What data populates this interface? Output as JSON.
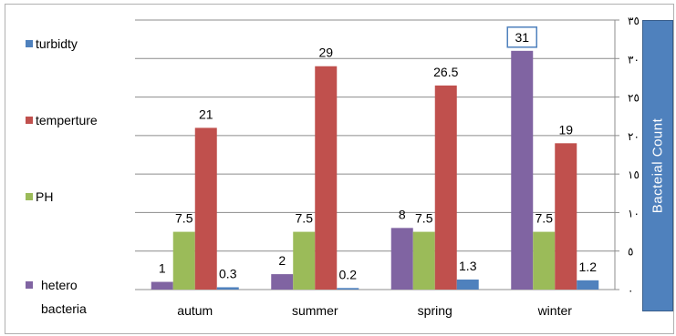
{
  "chart_data": {
    "type": "bar",
    "categories": [
      "autum",
      "summer",
      "spring",
      "winter"
    ],
    "series": [
      {
        "name": "hetero bacteria",
        "values": [
          1,
          2,
          8,
          31
        ],
        "labels": [
          "1",
          "2",
          "8",
          "31"
        ],
        "color": "#8064a2"
      },
      {
        "name": "PH",
        "values": [
          7.5,
          7.5,
          7.5,
          7.5
        ],
        "labels": [
          "7.5",
          "7.5",
          "7.5",
          "7.5"
        ],
        "color": "#9bbb59"
      },
      {
        "name": "temperture",
        "values": [
          21,
          29,
          26.5,
          19
        ],
        "labels": [
          "21",
          "29",
          "26.5",
          "19"
        ],
        "color": "#c0504d"
      },
      {
        "name": "turbidty",
        "values": [
          0.3,
          0.2,
          1.3,
          1.2
        ],
        "labels": [
          "0.3",
          "0.2",
          "1.3",
          "1.2"
        ],
        "color": "#4f81bd"
      }
    ],
    "legend_order": [
      "turbidty",
      "temperture",
      "PH",
      "hetero bacteria"
    ],
    "legend_position": "left",
    "ylabel": "Bacteial Count",
    "ylim": [
      0,
      35
    ],
    "yticks": [
      0,
      5,
      10,
      15,
      20,
      25,
      30,
      35
    ],
    "ytick_labels": [
      "٠",
      "٥",
      "١٠",
      "١٥",
      "٢٠",
      "٢٥",
      "٣٠",
      "٣٥"
    ],
    "y_axis_side": "right",
    "grid": true,
    "highlighted_label": "31"
  }
}
